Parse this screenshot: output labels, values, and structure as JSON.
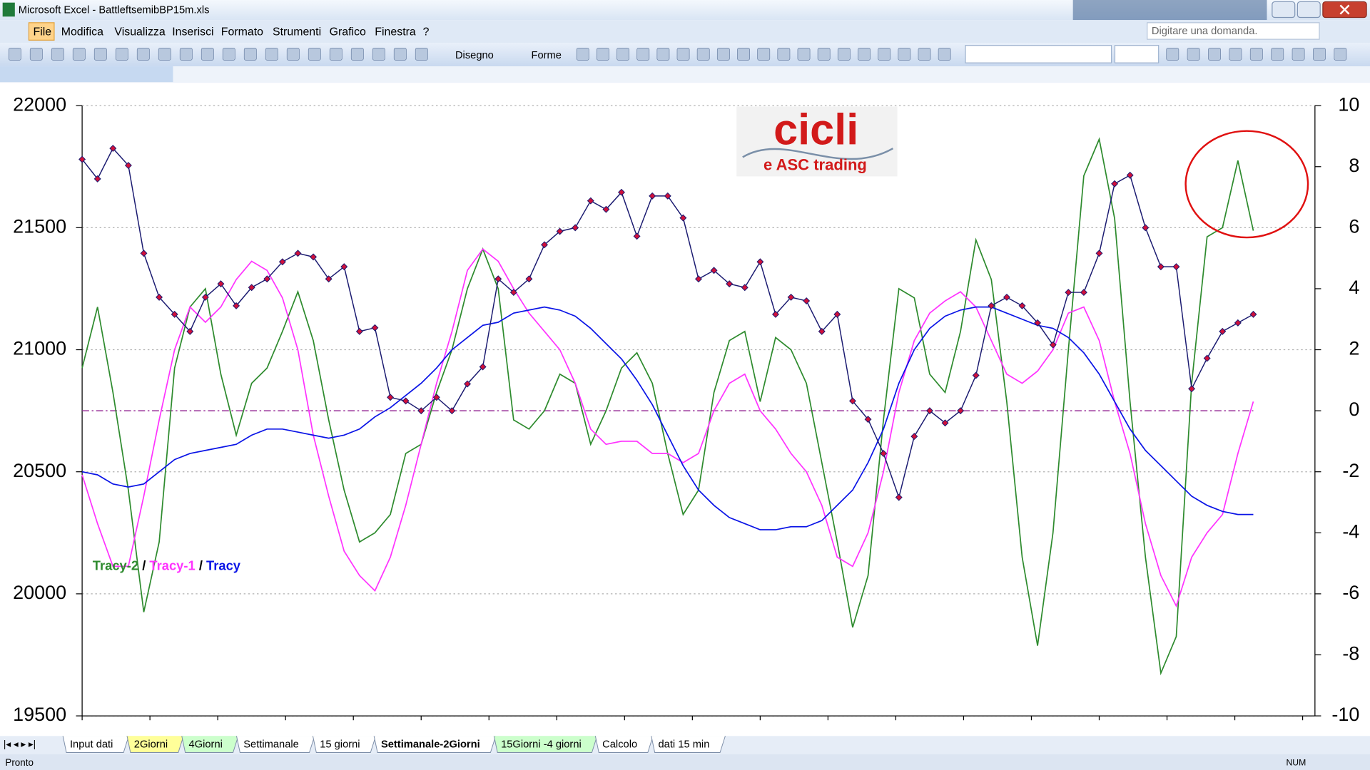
{
  "window": {
    "title": "Microsoft Excel - BattleftsemibBP15m.xls"
  },
  "menu": [
    "File",
    "Modifica",
    "Visualizza",
    "Inserisci",
    "Formato",
    "Strumenti",
    "Grafico",
    "Finestra",
    "?"
  ],
  "help_box": "Digitare una domanda.",
  "toolbar": {
    "drawing": "Disegno",
    "shapes": "Forme"
  },
  "logo": {
    "title": "cicli",
    "subtitle": "e ASC trading"
  },
  "sheet_tabs": [
    {
      "label": "Input dati",
      "color": "#ffffff"
    },
    {
      "label": "2Giorni",
      "color": "#ffff99"
    },
    {
      "label": "4Giorni",
      "color": "#ccffcc"
    },
    {
      "label": "Settimanale",
      "color": "#ffffff"
    },
    {
      "label": "15 giorni",
      "color": "#ffffff"
    },
    {
      "label": "Settimanale-2Giorni",
      "color": "#ffffff"
    },
    {
      "label": "15Giorni -4 giorni",
      "color": "#ccffcc"
    },
    {
      "label": "Calcolo",
      "color": "#ffffff"
    },
    {
      "label": "dati 15 min",
      "color": "#ffffff"
    }
  ],
  "active_tab": 5,
  "status": {
    "left": "Pronto",
    "right": "NUM"
  },
  "chart_data": {
    "type": "line",
    "categories": [
      null,
      null,
      null,
      null,
      null,
      null,
      null,
      null,
      null,
      null,
      null,
      null,
      null,
      null,
      null,
      null,
      null,
      null,
      null,
      null,
      null,
      null,
      null,
      null,
      null,
      null,
      null,
      null,
      null,
      null,
      null,
      null,
      null,
      null,
      null,
      null,
      null,
      null,
      null,
      null,
      null,
      null,
      null,
      null,
      null,
      null,
      null,
      null,
      null,
      null,
      null,
      null,
      null,
      null,
      null,
      null,
      null,
      null,
      null,
      null,
      null,
      null,
      null,
      null,
      null,
      null,
      null,
      null,
      null,
      null,
      null,
      null,
      null,
      null,
      null,
      null,
      null,
      null,
      null,
      null
    ],
    "series": [
      {
        "color": "#1a1a70",
        "marker_color": "#d0103a",
        "axis": "y",
        "values": [
          21780,
          21700,
          21825,
          21755,
          21395,
          21215,
          21145,
          21075,
          21215,
          21270,
          21180,
          21255,
          21290,
          21360,
          21395,
          21380,
          21290,
          21340,
          21075,
          21090,
          20805,
          20790,
          20750,
          20805,
          20750,
          20860,
          20930,
          21290,
          21235,
          21290,
          21430,
          21485,
          21500,
          21610,
          21575,
          21645,
          21465,
          21630,
          21630,
          21540,
          21290,
          21325,
          21270,
          21255,
          21360,
          21145,
          21215,
          21200,
          21075,
          21145,
          20790,
          20715,
          20575,
          20395,
          20645,
          20750,
          20700,
          20750,
          20895,
          21180,
          21215,
          21180,
          21110,
          21020,
          21235,
          21235,
          21395,
          21680,
          21715,
          21500,
          21340,
          21340,
          20840,
          20965,
          21075,
          21110,
          21145,
          null,
          null,
          null
        ]
      },
      {
        "name": "Tracy-2",
        "color": "#2e8b2e",
        "axis": "y2",
        "values": [
          1.4,
          3.4,
          0.6,
          -2.6,
          -6.6,
          -4.3,
          1.4,
          3.4,
          4.0,
          1.2,
          -0.8,
          0.9,
          1.4,
          2.6,
          3.9,
          2.3,
          -0.3,
          -2.6,
          -4.3,
          -4.0,
          -3.4,
          -1.4,
          -1.1,
          0.6,
          2.0,
          4.0,
          5.3,
          4.0,
          -0.3,
          -0.6,
          0,
          1.2,
          0.9,
          -1.1,
          0,
          1.4,
          1.9,
          0.9,
          -1.4,
          -3.4,
          -2.6,
          0.6,
          2.3,
          2.6,
          0.3,
          2.4,
          2.0,
          0.9,
          -1.7,
          -4.3,
          -7.1,
          -5.4,
          -0.3,
          4.0,
          3.7,
          1.2,
          0.6,
          2.6,
          5.6,
          4.3,
          0.3,
          -4.8,
          -7.7,
          -4.0,
          2.0,
          7.7,
          8.9,
          6.3,
          0.3,
          -4.8,
          -8.6,
          -7.4,
          0.9,
          5.7,
          6.0,
          8.2,
          5.9,
          null,
          null,
          null
        ]
      },
      {
        "name": "Tracy-1",
        "color": "#ff33ff",
        "axis": "y2",
        "values": [
          -2.1,
          -3.7,
          -5.1,
          -5.1,
          -2.8,
          -0.3,
          2.0,
          3.4,
          2.9,
          3.4,
          4.3,
          4.9,
          4.6,
          3.7,
          2.0,
          -0.8,
          -2.8,
          -4.6,
          -5.4,
          -5.9,
          -4.8,
          -3.1,
          -1.1,
          0.9,
          2.6,
          4.6,
          5.3,
          4.9,
          4.0,
          3.2,
          2.6,
          2.0,
          0.9,
          -0.6,
          -1.1,
          -1.0,
          -1.0,
          -1.4,
          -1.4,
          -1.7,
          -1.4,
          0,
          0.9,
          1.2,
          0,
          -0.6,
          -1.4,
          -2.0,
          -3.1,
          -4.8,
          -5.1,
          -4.0,
          -2.0,
          0.6,
          2.3,
          3.2,
          3.6,
          3.9,
          3.4,
          2.3,
          1.2,
          0.9,
          1.3,
          2.0,
          3.2,
          3.4,
          2.3,
          0.3,
          -1.4,
          -3.7,
          -5.4,
          -6.4,
          -4.8,
          -4.0,
          -3.4,
          -1.4,
          0.3,
          null,
          null,
          null
        ]
      },
      {
        "name": "Tracy",
        "color": "#0a14e6",
        "axis": "y2",
        "values": [
          -2.0,
          -2.1,
          -2.4,
          -2.5,
          -2.4,
          -2.0,
          -1.6,
          -1.4,
          -1.3,
          -1.2,
          -1.1,
          -0.8,
          -0.6,
          -0.6,
          -0.7,
          -0.8,
          -0.9,
          -0.8,
          -0.6,
          -0.2,
          0.1,
          0.5,
          0.9,
          1.4,
          2.0,
          2.4,
          2.8,
          2.9,
          3.2,
          3.3,
          3.4,
          3.3,
          3.1,
          2.7,
          2.2,
          1.7,
          1.0,
          0.2,
          -0.8,
          -1.8,
          -2.6,
          -3.1,
          -3.5,
          -3.7,
          -3.9,
          -3.9,
          -3.8,
          -3.8,
          -3.6,
          -3.1,
          -2.6,
          -1.7,
          -0.6,
          0.9,
          2.0,
          2.7,
          3.1,
          3.3,
          3.4,
          3.4,
          3.2,
          3.0,
          2.8,
          2.7,
          2.4,
          1.9,
          1.2,
          0.3,
          -0.6,
          -1.3,
          -1.8,
          -2.3,
          -2.8,
          -3.1,
          -3.3,
          -3.4,
          -3.4,
          null,
          null,
          null
        ]
      }
    ],
    "legend_separator": " / ",
    "ylim": [
      19500,
      22000
    ],
    "yticks": [
      19500,
      20000,
      20500,
      21000,
      21500,
      22000
    ],
    "y2lim": [
      -10,
      10
    ],
    "y2ticks": [
      -10,
      -8,
      -6,
      -4,
      -2,
      0,
      2,
      4,
      6,
      8,
      10
    ],
    "grid": true,
    "y2_reference_line": 0,
    "reference_color": "#993399"
  }
}
